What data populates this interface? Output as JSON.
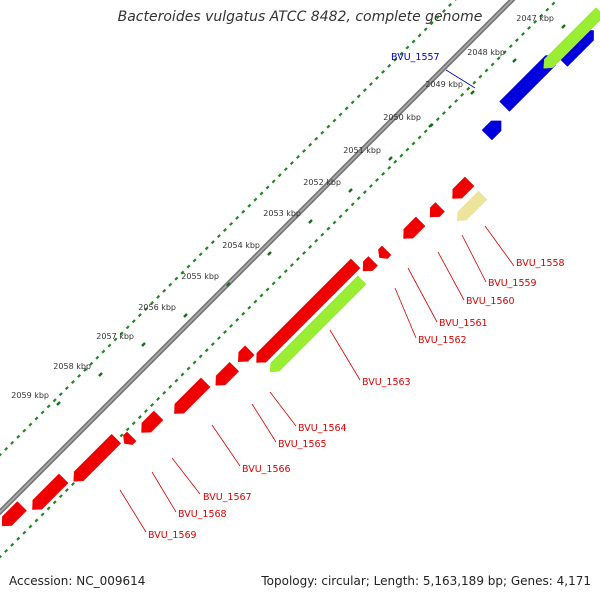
{
  "title": "Bacteroides vulgatus ATCC 8482, complete genome",
  "footer": {
    "accession": "Accession: NC_009614",
    "summary": "Topology: circular; Length: 5,163,189 bp; Genes: 4,171"
  },
  "colors": {
    "backbone": "#888888",
    "tick": "#1a8a1a",
    "forward_gene": "#0000dd",
    "reverse_gene": "#ee0000",
    "rna_forward": "#99ee33",
    "rna_reverse": "#99ee33",
    "pseudo": "#eee39a",
    "forward_label": "#0000cc",
    "reverse_label": "#dd0000"
  },
  "ticks": [
    {
      "label": "2047 kbp"
    },
    {
      "label": "2048 kbp"
    },
    {
      "label": "2049 kbp"
    },
    {
      "label": "2050 kbp"
    },
    {
      "label": "2051 kbp"
    },
    {
      "label": "2052 kbp"
    },
    {
      "label": "2053 kbp"
    },
    {
      "label": "2054 kbp"
    },
    {
      "label": "2055 kbp"
    },
    {
      "label": "2056 kbp"
    },
    {
      "label": "2057 kbp"
    },
    {
      "label": "2058 kbp"
    },
    {
      "label": "2059 kbp"
    }
  ],
  "gene_labels": [
    {
      "text": "BVU_1557",
      "strand": "forward"
    },
    {
      "text": "BVU_1558",
      "strand": "reverse"
    },
    {
      "text": "BVU_1559",
      "strand": "reverse"
    },
    {
      "text": "BVU_1560",
      "strand": "reverse"
    },
    {
      "text": "BVU_1561",
      "strand": "reverse"
    },
    {
      "text": "BVU_1562",
      "strand": "reverse"
    },
    {
      "text": "BVU_1563",
      "strand": "reverse"
    },
    {
      "text": "BVU_1564",
      "strand": "reverse"
    },
    {
      "text": "BVU_1565",
      "strand": "reverse"
    },
    {
      "text": "BVU_1566",
      "strand": "reverse"
    },
    {
      "text": "BVU_1567",
      "strand": "reverse"
    },
    {
      "text": "BVU_1568",
      "strand": "reverse"
    },
    {
      "text": "BVU_1569",
      "strand": "reverse"
    }
  ]
}
